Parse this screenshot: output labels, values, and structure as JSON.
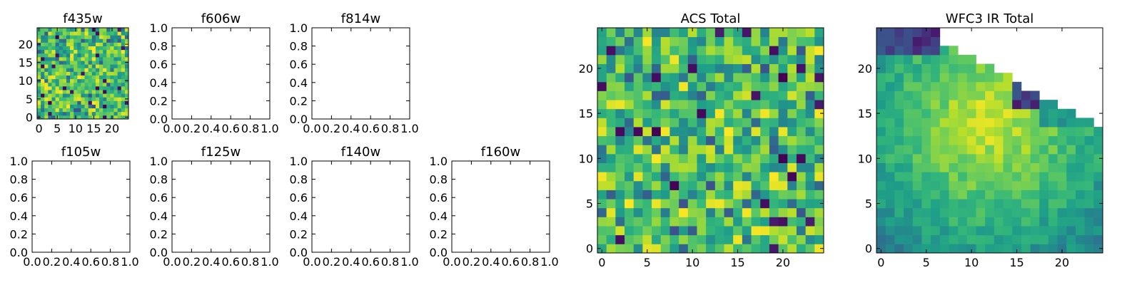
{
  "chart_data": [
    {
      "type": "heatmap",
      "title": "f435w",
      "colormap": "viridis",
      "xlim": [
        -0.5,
        24.5
      ],
      "ylim": [
        -0.5,
        24.5
      ],
      "x_ticks": [
        0,
        5,
        10,
        15,
        20
      ],
      "y_ticks": [
        0,
        5,
        10,
        15,
        20
      ],
      "grid": 25,
      "pattern": "noise",
      "seed": 11
    },
    {
      "type": "empty",
      "title": "f606w",
      "xlim": [
        0,
        1
      ],
      "ylim": [
        0,
        1
      ],
      "x_ticks": [
        "0.0",
        "0.2",
        "0.4",
        "0.6",
        "0.8",
        "1.0"
      ],
      "y_ticks": [
        "0.0",
        "0.2",
        "0.4",
        "0.6",
        "0.8",
        "1.0"
      ]
    },
    {
      "type": "empty",
      "title": "f814w",
      "xlim": [
        0,
        1
      ],
      "ylim": [
        0,
        1
      ],
      "x_ticks": [
        "0.0",
        "0.2",
        "0.4",
        "0.6",
        "0.8",
        "1.0"
      ],
      "y_ticks": [
        "0.0",
        "0.2",
        "0.4",
        "0.6",
        "0.8",
        "1.0"
      ]
    },
    {
      "type": "empty",
      "title": "f105w",
      "xlim": [
        0,
        1
      ],
      "ylim": [
        0,
        1
      ],
      "x_ticks": [
        "0.0",
        "0.2",
        "0.4",
        "0.6",
        "0.8",
        "1.0"
      ],
      "y_ticks": [
        "0.0",
        "0.2",
        "0.4",
        "0.6",
        "0.8",
        "1.0"
      ]
    },
    {
      "type": "empty",
      "title": "f125w",
      "xlim": [
        0,
        1
      ],
      "ylim": [
        0,
        1
      ],
      "x_ticks": [
        "0.0",
        "0.2",
        "0.4",
        "0.6",
        "0.8",
        "1.0"
      ],
      "y_ticks": [
        "0.0",
        "0.2",
        "0.4",
        "0.6",
        "0.8",
        "1.0"
      ]
    },
    {
      "type": "empty",
      "title": "f140w",
      "xlim": [
        0,
        1
      ],
      "ylim": [
        0,
        1
      ],
      "x_ticks": [
        "0.0",
        "0.2",
        "0.4",
        "0.6",
        "0.8",
        "1.0"
      ],
      "y_ticks": [
        "0.0",
        "0.2",
        "0.4",
        "0.6",
        "0.8",
        "1.0"
      ]
    },
    {
      "type": "empty",
      "title": "f160w",
      "xlim": [
        0,
        1
      ],
      "ylim": [
        0,
        1
      ],
      "x_ticks": [
        "0.0",
        "0.2",
        "0.4",
        "0.6",
        "0.8",
        "1.0"
      ],
      "y_ticks": [
        "0.0",
        "0.2",
        "0.4",
        "0.6",
        "0.8",
        "1.0"
      ]
    },
    {
      "type": "heatmap",
      "title": "ACS Total",
      "colormap": "viridis",
      "xlim": [
        -0.5,
        24.5
      ],
      "ylim": [
        -0.5,
        24.5
      ],
      "x_ticks": [
        0,
        5,
        10,
        15,
        20
      ],
      "y_ticks": [
        0,
        5,
        10,
        15,
        20
      ],
      "grid": 25,
      "pattern": "noise",
      "seed": 29
    },
    {
      "type": "heatmap",
      "title": "WFC3 IR Total",
      "colormap": "viridis",
      "xlim": [
        -0.5,
        24.5
      ],
      "ylim": [
        -0.5,
        24.5
      ],
      "x_ticks": [
        0,
        5,
        10,
        15,
        20
      ],
      "y_ticks": [
        0,
        5,
        10,
        15,
        20
      ],
      "grid": 25,
      "pattern": "masked_corner",
      "seed": 47
    }
  ]
}
